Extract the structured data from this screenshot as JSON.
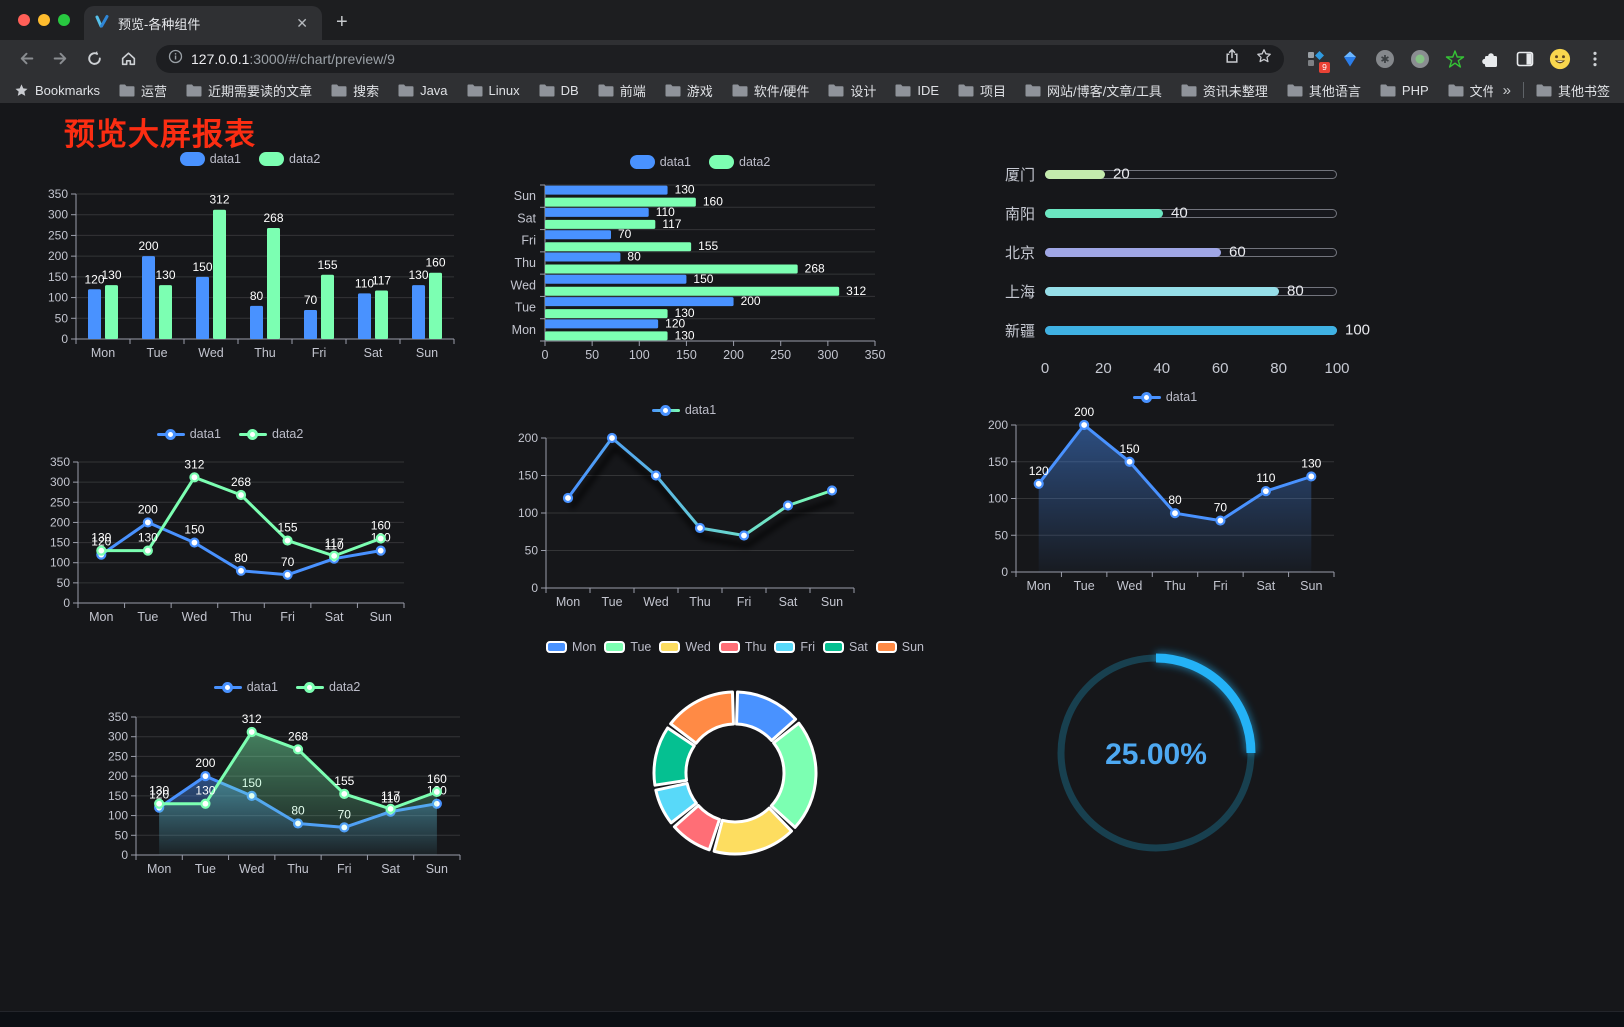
{
  "browser": {
    "tab": {
      "title": "预览-各种组件"
    },
    "url_host": "127.0.0.1",
    "url_path": ":3000/#/chart/preview/9",
    "bookmarks_bar": {
      "manager_label": "Bookmarks",
      "folders": [
        "运营",
        "近期需要读的文章",
        "搜索",
        "Java",
        "Linux",
        "DB",
        "前端",
        "游戏",
        "软件/硬件",
        "设计",
        "IDE",
        "项目",
        "网站/博客/文章/工具",
        "资讯未整理",
        "其他语言",
        "PHP",
        "文件服务器"
      ],
      "overflow_chevron": "»",
      "other_bookmarks": "其他书签"
    },
    "extension_badge": "9"
  },
  "page": {
    "title": "预览大屏报表"
  },
  "chart_data": [
    {
      "key": "bar-grouped",
      "type": "bar",
      "categories": [
        "Mon",
        "Tue",
        "Wed",
        "Thu",
        "Fri",
        "Sat",
        "Sun"
      ],
      "series": [
        {
          "name": "data1",
          "values": [
            120,
            200,
            150,
            80,
            70,
            110,
            130
          ],
          "color": "#4992ff"
        },
        {
          "name": "data2",
          "values": [
            130,
            130,
            312,
            268,
            155,
            117,
            160
          ],
          "color": "#7cffb2"
        }
      ],
      "ylim": [
        0,
        350
      ],
      "ystep": 50,
      "grid": true,
      "legend_position": "top",
      "value_labels": true
    },
    {
      "key": "hbar-grouped",
      "type": "bar",
      "orientation": "horizontal",
      "categories": [
        "Mon",
        "Tue",
        "Wed",
        "Thu",
        "Fri",
        "Sat",
        "Sun"
      ],
      "series": [
        {
          "name": "data1",
          "values": [
            120,
            200,
            150,
            80,
            70,
            110,
            130
          ],
          "color": "#4992ff"
        },
        {
          "name": "data2",
          "values": [
            130,
            130,
            312,
            268,
            155,
            117,
            160
          ],
          "color": "#7cffb2"
        }
      ],
      "xlim": [
        0,
        350
      ],
      "xstep": 50,
      "legend_position": "top",
      "value_labels": true
    },
    {
      "key": "progress-list",
      "type": "bar",
      "orientation": "horizontal-progress",
      "items": [
        {
          "label": "厦门",
          "value": 20,
          "color": "#c4ebad"
        },
        {
          "label": "南阳",
          "value": 40,
          "color": "#6be6c1"
        },
        {
          "label": "北京",
          "value": 60,
          "color": "#a0a7e6"
        },
        {
          "label": "上海",
          "value": 80,
          "color": "#96dee8"
        },
        {
          "label": "新疆",
          "value": 100,
          "color": "#3fb1e3"
        }
      ],
      "xlim": [
        0,
        100
      ],
      "ticks": [
        0,
        20,
        40,
        60,
        80,
        100
      ]
    },
    {
      "key": "line-dual",
      "type": "line",
      "categories": [
        "Mon",
        "Tue",
        "Wed",
        "Thu",
        "Fri",
        "Sat",
        "Sun"
      ],
      "series": [
        {
          "name": "data1",
          "values": [
            120,
            200,
            150,
            80,
            70,
            110,
            130
          ],
          "color": "#4992ff"
        },
        {
          "name": "data2",
          "values": [
            130,
            130,
            312,
            268,
            155,
            117,
            160
          ],
          "color": "#7cffb2"
        }
      ],
      "ylim": [
        0,
        350
      ],
      "ystep": 50,
      "value_labels": true
    },
    {
      "key": "line-gradient",
      "type": "line",
      "categories": [
        "Mon",
        "Tue",
        "Wed",
        "Thu",
        "Fri",
        "Sat",
        "Sun"
      ],
      "series": [
        {
          "name": "data1",
          "values": [
            120,
            200,
            150,
            80,
            70,
            110,
            130
          ],
          "gradient": [
            "#4992ff",
            "#7cffb2"
          ]
        }
      ],
      "ylim": [
        0,
        200
      ],
      "ystep": 50,
      "value_labels": false
    },
    {
      "key": "area-single",
      "type": "area",
      "categories": [
        "Mon",
        "Tue",
        "Wed",
        "Thu",
        "Fri",
        "Sat",
        "Sun"
      ],
      "series": [
        {
          "name": "data1",
          "values": [
            120,
            200,
            150,
            80,
            70,
            110,
            130
          ],
          "color": "#4992ff",
          "area": true
        }
      ],
      "ylim": [
        0,
        200
      ],
      "ystep": 50,
      "value_labels": true
    },
    {
      "key": "area-dual",
      "type": "area",
      "categories": [
        "Mon",
        "Tue",
        "Wed",
        "Thu",
        "Fri",
        "Sat",
        "Sun"
      ],
      "series": [
        {
          "name": "data1",
          "values": [
            120,
            200,
            150,
            80,
            70,
            110,
            130
          ],
          "color": "#4992ff",
          "area": true
        },
        {
          "name": "data2",
          "values": [
            130,
            130,
            312,
            268,
            155,
            117,
            160
          ],
          "color": "#7cffb2",
          "area": true
        }
      ],
      "ylim": [
        0,
        350
      ],
      "ystep": 50,
      "value_labels": true
    },
    {
      "key": "donut",
      "type": "pie",
      "labels": [
        "Mon",
        "Tue",
        "Wed",
        "Thu",
        "Fri",
        "Sat",
        "Sun"
      ],
      "values": [
        120,
        200,
        150,
        80,
        70,
        110,
        130
      ],
      "colors": [
        "#4992ff",
        "#7cffb2",
        "#fddd60",
        "#ff6e76",
        "#58d9f9",
        "#05c091",
        "#ff8a45"
      ],
      "legend_position": "top"
    },
    {
      "key": "gauge",
      "type": "gauge",
      "value": 25,
      "display": "25.00%",
      "color": "#24b2f6",
      "track_color": "#18404f",
      "text_color": "#4ea9f2"
    }
  ]
}
